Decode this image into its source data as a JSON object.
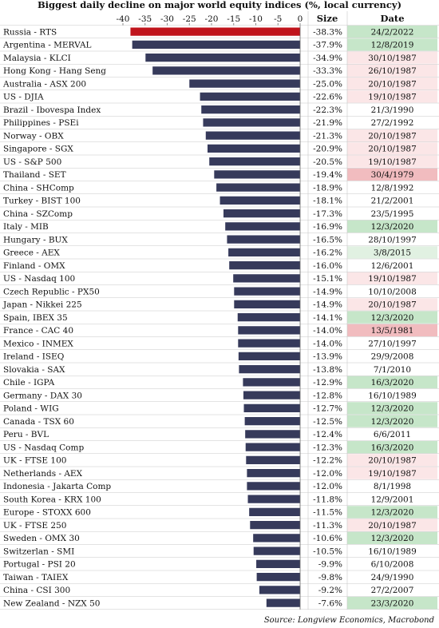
{
  "title": "Biggest daily decline on major world equity indices (%, local currency)",
  "source": "Source: Longview Economics, Macrobond",
  "colors": {
    "bar": "#363a5b",
    "highlight_bar": "#c0141c",
    "date_green": "#c6e6c9",
    "date_red": "#f1bcbf",
    "grid": "#c8c8c8"
  },
  "chart_data": {
    "type": "bar",
    "orientation": "horizontal",
    "title": "Biggest daily decline on major world equity indices (%, local currency)",
    "xlabel": "",
    "ylabel": "",
    "xlim": [
      -40,
      0
    ],
    "x_ticks": [
      "-40",
      "-35",
      "-30",
      "-25",
      "-20",
      "-15",
      "-10",
      "-5",
      "0"
    ],
    "columns": [
      "Size",
      "Date"
    ],
    "rows": [
      {
        "index": "Russia - RTS",
        "value": -38.3,
        "size": "-38.3%",
        "date": "24/2/2022",
        "date_shade": "green",
        "highlight": true
      },
      {
        "index": "Argentina - MERVAL",
        "value": -37.9,
        "size": "-37.9%",
        "date": "12/8/2019",
        "date_shade": "green"
      },
      {
        "index": "Malaysia - KLCI",
        "value": -34.9,
        "size": "-34.9%",
        "date": "30/10/1987",
        "date_shade": "light-red"
      },
      {
        "index": "Hong Kong - Hang Seng",
        "value": -33.3,
        "size": "-33.3%",
        "date": "26/10/1987",
        "date_shade": "light-red"
      },
      {
        "index": "Australia - ASX 200",
        "value": -25.0,
        "size": "-25.0%",
        "date": "20/10/1987",
        "date_shade": "light-red"
      },
      {
        "index": "US - DJIA",
        "value": -22.6,
        "size": "-22.6%",
        "date": "19/10/1987",
        "date_shade": "light-red"
      },
      {
        "index": "Brazil - Ibovespa Index",
        "value": -22.3,
        "size": "-22.3%",
        "date": "21/3/1990",
        "date_shade": "none"
      },
      {
        "index": "Philippines - PSEi",
        "value": -21.9,
        "size": "-21.9%",
        "date": "27/2/1992",
        "date_shade": "none"
      },
      {
        "index": "Norway - OBX",
        "value": -21.3,
        "size": "-21.3%",
        "date": "20/10/1987",
        "date_shade": "light-red"
      },
      {
        "index": "Singapore - SGX",
        "value": -20.9,
        "size": "-20.9%",
        "date": "20/10/1987",
        "date_shade": "light-red"
      },
      {
        "index": "US - S&P 500",
        "value": -20.5,
        "size": "-20.5%",
        "date": "19/10/1987",
        "date_shade": "light-red"
      },
      {
        "index": "Thailand - SET",
        "value": -19.4,
        "size": "-19.4%",
        "date": "30/4/1979",
        "date_shade": "red"
      },
      {
        "index": "China - SHComp",
        "value": -18.9,
        "size": "-18.9%",
        "date": "12/8/1992",
        "date_shade": "none"
      },
      {
        "index": "Turkey - BIST 100",
        "value": -18.1,
        "size": "-18.1%",
        "date": "21/2/2001",
        "date_shade": "none"
      },
      {
        "index": "China - SZComp",
        "value": -17.3,
        "size": "-17.3%",
        "date": "23/5/1995",
        "date_shade": "none"
      },
      {
        "index": "Italy - MIB",
        "value": -16.9,
        "size": "-16.9%",
        "date": "12/3/2020",
        "date_shade": "green"
      },
      {
        "index": "Hungary - BUX",
        "value": -16.5,
        "size": "-16.5%",
        "date": "28/10/1997",
        "date_shade": "none"
      },
      {
        "index": "Greece - AEX",
        "value": -16.2,
        "size": "-16.2%",
        "date": "3/8/2015",
        "date_shade": "light-green"
      },
      {
        "index": "Finland - OMX",
        "value": -16.0,
        "size": "-16.0%",
        "date": "12/6/2001",
        "date_shade": "none"
      },
      {
        "index": "US - Nasdaq 100",
        "value": -15.1,
        "size": "-15.1%",
        "date": "19/10/1987",
        "date_shade": "light-red"
      },
      {
        "index": "Czech Republic - PX50",
        "value": -14.9,
        "size": "-14.9%",
        "date": "10/10/2008",
        "date_shade": "none"
      },
      {
        "index": "Japan - Nikkei 225",
        "value": -14.9,
        "size": "-14.9%",
        "date": "20/10/1987",
        "date_shade": "light-red"
      },
      {
        "index": "Spain, IBEX 35",
        "value": -14.1,
        "size": "-14.1%",
        "date": "12/3/2020",
        "date_shade": "green"
      },
      {
        "index": "France - CAC 40",
        "value": -14.0,
        "size": "-14.0%",
        "date": "13/5/1981",
        "date_shade": "red"
      },
      {
        "index": "Mexico - INMEX",
        "value": -14.0,
        "size": "-14.0%",
        "date": "27/10/1997",
        "date_shade": "none"
      },
      {
        "index": "Ireland - ISEQ",
        "value": -13.9,
        "size": "-13.9%",
        "date": "29/9/2008",
        "date_shade": "none"
      },
      {
        "index": "Slovakia - SAX",
        "value": -13.8,
        "size": "-13.8%",
        "date": "7/1/2010",
        "date_shade": "none"
      },
      {
        "index": "Chile - IGPA",
        "value": -12.9,
        "size": "-12.9%",
        "date": "16/3/2020",
        "date_shade": "green"
      },
      {
        "index": "Germany - DAX 30",
        "value": -12.8,
        "size": "-12.8%",
        "date": "16/10/1989",
        "date_shade": "none"
      },
      {
        "index": "Poland - WIG",
        "value": -12.7,
        "size": "-12.7%",
        "date": "12/3/2020",
        "date_shade": "green"
      },
      {
        "index": "Canada - TSX 60",
        "value": -12.5,
        "size": "-12.5%",
        "date": "12/3/2020",
        "date_shade": "green"
      },
      {
        "index": "Peru - BVL",
        "value": -12.4,
        "size": "-12.4%",
        "date": "6/6/2011",
        "date_shade": "none"
      },
      {
        "index": "US - Nasdaq Comp",
        "value": -12.3,
        "size": "-12.3%",
        "date": "16/3/2020",
        "date_shade": "green"
      },
      {
        "index": "UK - FTSE 100",
        "value": -12.2,
        "size": "-12.2%",
        "date": "20/10/1987",
        "date_shade": "light-red"
      },
      {
        "index": "Netherlands - AEX",
        "value": -12.0,
        "size": "-12.0%",
        "date": "19/10/1987",
        "date_shade": "light-red"
      },
      {
        "index": "Indonesia - Jakarta Comp",
        "value": -12.0,
        "size": "-12.0%",
        "date": "8/1/1998",
        "date_shade": "none"
      },
      {
        "index": "South Korea - KRX 100",
        "value": -11.8,
        "size": "-11.8%",
        "date": "12/9/2001",
        "date_shade": "none"
      },
      {
        "index": "Europe - STOXX 600",
        "value": -11.5,
        "size": "-11.5%",
        "date": "12/3/2020",
        "date_shade": "green"
      },
      {
        "index": "UK - FTSE 250",
        "value": -11.3,
        "size": "-11.3%",
        "date": "20/10/1987",
        "date_shade": "light-red"
      },
      {
        "index": "Sweden - OMX 30",
        "value": -10.6,
        "size": "-10.6%",
        "date": "12/3/2020",
        "date_shade": "green"
      },
      {
        "index": "Switzerlan - SMI",
        "value": -10.5,
        "size": "-10.5%",
        "date": "16/10/1989",
        "date_shade": "none"
      },
      {
        "index": "Portugal - PSI 20",
        "value": -9.9,
        "size": "-9.9%",
        "date": "6/10/2008",
        "date_shade": "none"
      },
      {
        "index": "Taiwan - TAIEX",
        "value": -9.8,
        "size": "-9.8%",
        "date": "24/9/1990",
        "date_shade": "none"
      },
      {
        "index": "China - CSI 300",
        "value": -9.2,
        "size": "-9.2%",
        "date": "27/2/2007",
        "date_shade": "none"
      },
      {
        "index": "New Zealand - NZX 50",
        "value": -7.6,
        "size": "-7.6%",
        "date": "23/3/2020",
        "date_shade": "green"
      }
    ]
  }
}
